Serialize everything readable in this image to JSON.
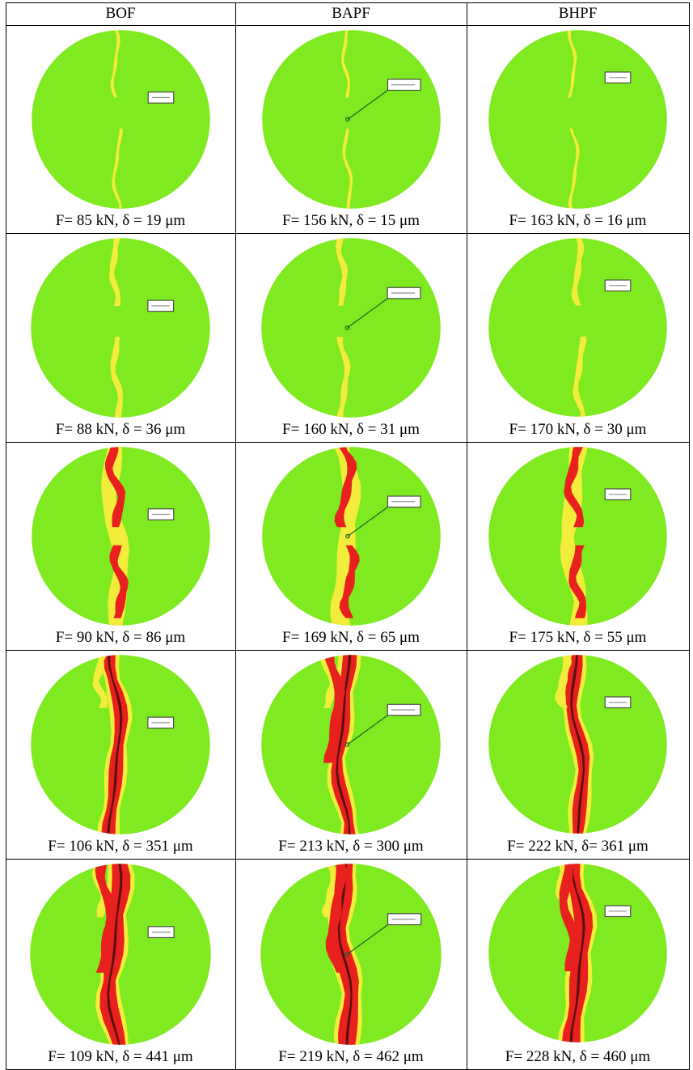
{
  "headers": [
    "BOF",
    "BAPF",
    "BHPF"
  ],
  "rows": [
    [
      "F= 85 kN, δ = 19 μm",
      "F= 156 kN, δ = 15 μm",
      "F= 163 kN, δ = 16 μm"
    ],
    [
      "F= 88 kN, δ = 36 μm",
      "F= 160 kN, δ = 31 μm",
      "F= 170 kN, δ = 30 μm"
    ],
    [
      "F= 90 kN, δ = 86 μm",
      "F= 169 kN, δ = 65 μm",
      "F= 175 kN, δ = 55 μm"
    ],
    [
      "F= 106 kN, δ = 351 μm",
      "F= 213 kN, δ = 300 μm",
      "F= 222 kN, δ= 361 μm"
    ],
    [
      "F= 109 kN, δ = 441 μm",
      "F= 219 kN, δ = 462 μm",
      "F= 228 kN, δ = 460 μm"
    ]
  ],
  "colors": {
    "specimen": "#7fea1f",
    "low_strain": "#f2ec3a",
    "crack": "#e8201e",
    "crack_core": "#5a1010"
  }
}
